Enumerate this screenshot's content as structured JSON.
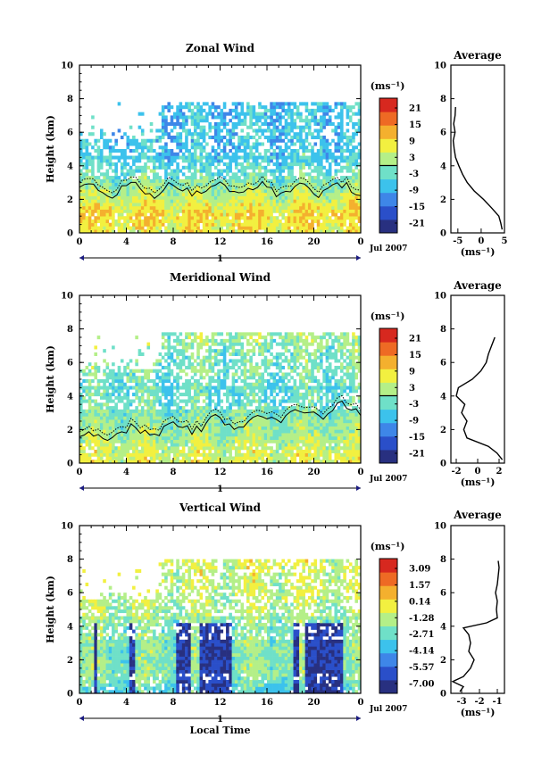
{
  "panels": [
    {
      "title": "Zonal Wind",
      "ylabel": "Height (km)",
      "units": "(ms⁻¹)",
      "colorbar_ticks": [
        "21",
        "15",
        "9",
        "3",
        "-3",
        "-9",
        "-15",
        "-21"
      ],
      "avg_title": "Average",
      "avg_units": "(ms⁻¹)",
      "avg_xticks": [
        "-5",
        "0",
        "5"
      ],
      "date": "Jul 2007",
      "day": "1"
    },
    {
      "title": "Meridional Wind",
      "ylabel": "Height (km)",
      "units": "(ms⁻¹)",
      "colorbar_ticks": [
        "21",
        "15",
        "9",
        "3",
        "-3",
        "-9",
        "-15",
        "-21"
      ],
      "avg_title": "Average",
      "avg_units": "(ms⁻¹)",
      "avg_xticks": [
        "-2",
        "0",
        "2"
      ],
      "date": "Jul 2007",
      "day": "1"
    },
    {
      "title": "Vertical Wind",
      "ylabel": "Height (km)",
      "units": "(ms⁻¹)",
      "colorbar_ticks": [
        "3.09",
        "1.57",
        "0.14",
        "-1.28",
        "-2.71",
        "-4.14",
        "-5.57",
        "-7.00"
      ],
      "avg_title": "Average",
      "avg_units": "(ms⁻¹)",
      "avg_xticks": [
        "-3",
        "-2",
        "-1"
      ],
      "date": "Jul 2007",
      "day": "1",
      "xlabel": "Local Time"
    }
  ],
  "chart_data": [
    {
      "type": "heatmap",
      "title": "Zonal Wind",
      "ylabel": "Height (km)",
      "xticks": [
        "0",
        "4",
        "8",
        "12",
        "16",
        "20",
        "0"
      ],
      "yticks": [
        "0",
        "2",
        "4",
        "6",
        "8",
        "10"
      ],
      "xlim": [
        0,
        24
      ],
      "ylim": [
        0,
        10
      ],
      "clim": [
        -21,
        21
      ],
      "data_top_km": 7.7,
      "profile": {
        "heights": [
          0.2,
          0.6,
          1.0,
          1.5,
          2.0,
          2.5,
          3.0,
          3.5,
          4.0,
          4.5,
          5.0,
          5.5,
          6.0,
          6.5,
          7.0,
          7.5
        ],
        "values": [
          6,
          7,
          8,
          6,
          4,
          2,
          0,
          -2,
          -4,
          -5,
          -6,
          -6,
          -5,
          -6,
          -6,
          -6
        ]
      },
      "average": {
        "type": "line",
        "xlim": [
          -6.5,
          5
        ],
        "xticks": [
          -5,
          0,
          5
        ],
        "heights": [
          0.2,
          0.6,
          1.0,
          1.5,
          2.0,
          2.5,
          3.0,
          3.5,
          4.0,
          4.5,
          5.0,
          5.5,
          6.0,
          6.5,
          7.0,
          7.5
        ],
        "values": [
          4.5,
          4.2,
          3.8,
          2.2,
          0.5,
          -1.5,
          -3,
          -4,
          -4.8,
          -5.5,
          -5.8,
          -6,
          -5.6,
          -5.9,
          -5.6,
          -5.5
        ]
      }
    },
    {
      "type": "heatmap",
      "title": "Meridional Wind",
      "ylabel": "Height (km)",
      "xticks": [
        "0",
        "4",
        "8",
        "12",
        "16",
        "20",
        "0"
      ],
      "yticks": [
        "0",
        "2",
        "4",
        "6",
        "8",
        "10"
      ],
      "xlim": [
        0,
        24
      ],
      "ylim": [
        0,
        10
      ],
      "clim": [
        -21,
        21
      ],
      "data_top_km": 7.8,
      "profile": {
        "heights": [
          0.2,
          0.6,
          1.0,
          1.5,
          2.0,
          2.5,
          3.0,
          3.5,
          4.0,
          4.5,
          5.0,
          5.5,
          6.0,
          6.5,
          7.0,
          7.5
        ],
        "values": [
          5,
          4,
          3,
          2,
          1,
          0,
          -1,
          -2,
          -3,
          -3,
          -2,
          -1,
          -1,
          -1,
          0,
          1
        ]
      },
      "average": {
        "type": "line",
        "xlim": [
          -2.5,
          2.5
        ],
        "xticks": [
          -2,
          0,
          2
        ],
        "heights": [
          0.2,
          0.6,
          1.0,
          1.5,
          2.0,
          2.5,
          3.0,
          3.5,
          4.0,
          4.5,
          5.0,
          5.5,
          6.0,
          6.5,
          7.0,
          7.5
        ],
        "values": [
          2.3,
          1.8,
          1.0,
          -1.0,
          -1.3,
          -1.0,
          -1.5,
          -1.2,
          -2.0,
          -1.8,
          -0.5,
          0.3,
          0.8,
          1.0,
          1.3,
          1.6
        ]
      }
    },
    {
      "type": "heatmap",
      "title": "Vertical Wind",
      "ylabel": "Height (km)",
      "xlabel": "Local Time",
      "xticks": [
        "0",
        "4",
        "8",
        "12",
        "16",
        "20",
        "0"
      ],
      "yticks": [
        "0",
        "2",
        "4",
        "6",
        "8",
        "10"
      ],
      "xlim": [
        0,
        24
      ],
      "ylim": [
        0,
        10
      ],
      "clim": [
        -7.0,
        3.09
      ],
      "data_top_km": 7.9,
      "profile": {
        "heights": [
          0.2,
          0.6,
          1.0,
          1.5,
          2.0,
          2.5,
          3.0,
          3.5,
          4.0,
          4.5,
          5.0,
          5.5,
          6.0,
          6.5,
          7.0,
          7.5
        ],
        "values": [
          -3,
          -2.5,
          -2,
          -2,
          -2,
          -2,
          -2,
          -2,
          -2.2,
          -1.8,
          -1.5,
          -1.3,
          -1.3,
          -1.2,
          -1.1,
          -1.0
        ]
      },
      "average": {
        "type": "line",
        "xlim": [
          -3.6,
          -0.6
        ],
        "xticks": [
          -3,
          -2,
          -1
        ],
        "heights": [
          0.1,
          0.4,
          0.7,
          1.0,
          1.5,
          2.0,
          2.5,
          3.0,
          3.5,
          3.9,
          4.2,
          4.5,
          5.0,
          5.5,
          6.0,
          6.5,
          7.0,
          7.5,
          7.9
        ],
        "values": [
          -3.1,
          -2.9,
          -3.5,
          -2.9,
          -2.5,
          -2.3,
          -2.6,
          -2.5,
          -2.6,
          -2.9,
          -1.6,
          -1.0,
          -1.05,
          -1.0,
          -1.1,
          -1.0,
          -0.95,
          -0.9,
          -0.95
        ]
      }
    }
  ],
  "colors": {
    "colormap": [
      "#283080",
      "#2a4fc9",
      "#3e86e8",
      "#3cc2ec",
      "#6fe0c8",
      "#b4ef88",
      "#f2f040",
      "#f4b02e",
      "#ee6a24",
      "#d7281f"
    ],
    "missing": "#ffffff",
    "contour": "#000000",
    "zero_line": "#000000"
  }
}
